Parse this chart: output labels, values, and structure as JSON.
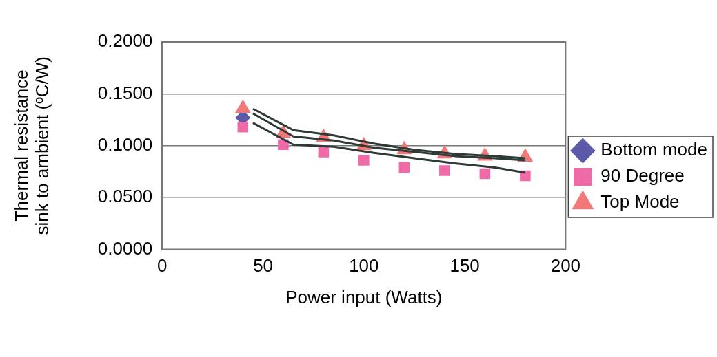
{
  "chart_data": {
    "type": "scatter",
    "xlabel": "Power input (Watts)",
    "ylabel": "Thermal resistance sink to ambient (ºC/W)",
    "xlim": [
      0,
      200
    ],
    "xticks": [
      0,
      50,
      100,
      150,
      200
    ],
    "ylim": [
      0,
      0.2
    ],
    "yticks": [
      {
        "value": 0,
        "label": "0.0000"
      },
      {
        "value": 0.05,
        "label": "0.0500"
      },
      {
        "value": 0.1,
        "label": "0.1000"
      },
      {
        "value": 0.15,
        "label": "0.1500"
      },
      {
        "value": 0.2,
        "label": "0.2000"
      }
    ],
    "grid": "y",
    "legend": "right",
    "series": [
      {
        "name": "Bottom mode",
        "type": "scatter",
        "marker": "diamond",
        "color": "#5a5aa8",
        "x": [
          40
        ],
        "values": [
          0.127
        ]
      },
      {
        "name": "90 Degree",
        "type": "scatter",
        "marker": "square",
        "color": "#f06aa8",
        "x": [
          40,
          60,
          80,
          100,
          120,
          140,
          160,
          180
        ],
        "values": [
          0.118,
          0.101,
          0.094,
          0.086,
          0.079,
          0.076,
          0.073,
          0.071
        ]
      },
      {
        "name": "Top Mode",
        "type": "scatter",
        "marker": "triangle",
        "color": "#f07878",
        "x": [
          40,
          60,
          80,
          100,
          120,
          140,
          160,
          180
        ],
        "values": [
          0.136,
          0.112,
          0.108,
          0.1,
          0.096,
          0.092,
          0.09,
          0.089
        ]
      },
      {
        "type": "line",
        "marker": "none",
        "color": "#2d3a35",
        "x": [
          45,
          65,
          85,
          105,
          125,
          145,
          165,
          180
        ],
        "values": [
          0.1355,
          0.115,
          0.11,
          0.102,
          0.096,
          0.092,
          0.09,
          0.088
        ]
      },
      {
        "type": "line",
        "marker": "none",
        "color": "#2d3a35",
        "x": [
          45,
          65,
          85,
          105,
          125,
          145,
          165,
          180
        ],
        "values": [
          0.131,
          0.109,
          0.105,
          0.098,
          0.094,
          0.09,
          0.088,
          0.086
        ]
      },
      {
        "type": "line",
        "marker": "none",
        "color": "#2d3a35",
        "x": [
          45,
          65,
          85,
          105,
          125,
          145,
          165,
          180
        ],
        "values": [
          0.122,
          0.101,
          0.099,
          0.093,
          0.088,
          0.083,
          0.079,
          0.074
        ]
      }
    ]
  }
}
